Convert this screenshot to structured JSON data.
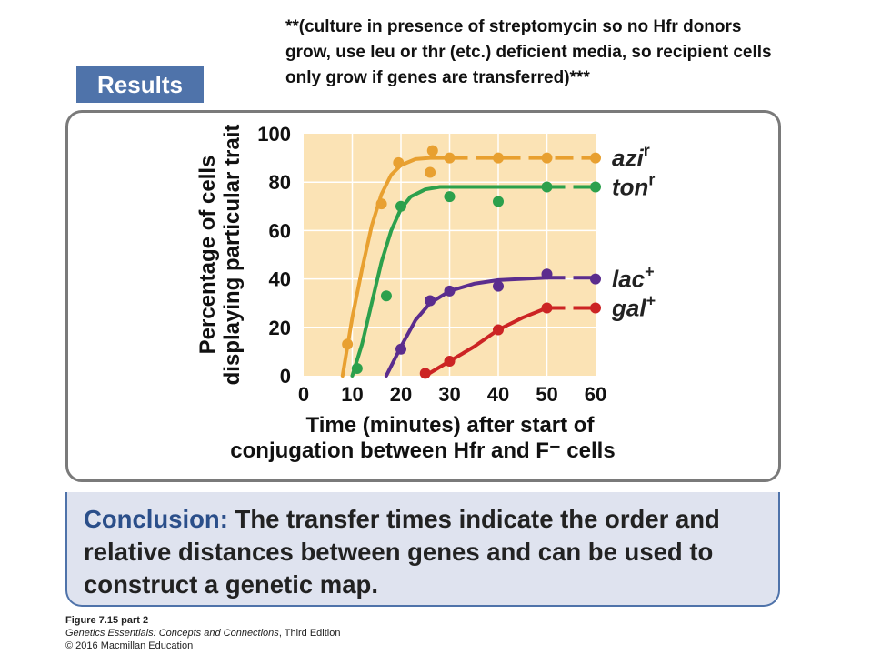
{
  "note": {
    "line1": "**(culture in presence of streptomycin so no Hfr donors",
    "line2": "grow, use leu or thr (etc.) deficient media, so recipient cells",
    "line3": "only grow if genes are transferred)***"
  },
  "results_label": "Results",
  "conclusion": {
    "label": "Conclusion:",
    "line1_rest": " The transfer times indicate the order and",
    "line2": "relative distances between genes and can be used to",
    "line3": "construct a genetic map."
  },
  "caption": {
    "figure": "Figure 7.15 part 2",
    "book_title": "Genetics Essentials: Concepts and Connections",
    "book_edition": ", Third Edition",
    "copyright": "© 2016 Macmillan Education"
  },
  "colors": {
    "plot_bg": "#fbe3b5",
    "grid": "#ffffff",
    "azi": "#e8a030",
    "ton": "#2ca04c",
    "lac": "#5b2d8e",
    "gal": "#cc2424",
    "accent": "#4f73aa"
  },
  "chart_data": {
    "type": "line",
    "xlabel_line1": "Time (minutes) after start of",
    "xlabel_line2": "conjugation between Hfr and F⁻ cells",
    "ylabel_line1": "Percentage of cells",
    "ylabel_line2": "displaying particular trait",
    "xlim": [
      0,
      60
    ],
    "ylim": [
      0,
      100
    ],
    "x_ticks": [
      "0",
      "10",
      "20",
      "30",
      "40",
      "50",
      "60"
    ],
    "y_ticks": [
      "0",
      "20",
      "40",
      "60",
      "80",
      "100"
    ],
    "grid": true,
    "series": [
      {
        "name": "azi",
        "superscript": "r",
        "color": "#e8a030",
        "points": [
          [
            9,
            13
          ],
          [
            16,
            71
          ],
          [
            19.5,
            88
          ],
          [
            26,
            84
          ],
          [
            26.5,
            93
          ],
          [
            30,
            90
          ],
          [
            40,
            90
          ],
          [
            50,
            90
          ],
          [
            60,
            90
          ]
        ],
        "curve": [
          [
            8,
            0
          ],
          [
            10,
            24
          ],
          [
            12,
            44
          ],
          [
            14,
            62
          ],
          [
            16,
            75
          ],
          [
            18,
            83
          ],
          [
            20,
            87
          ],
          [
            23,
            89.5
          ],
          [
            26,
            90
          ],
          [
            60,
            90
          ]
        ],
        "dashed_from": 30
      },
      {
        "name": "ton",
        "superscript": "r",
        "color": "#2ca04c",
        "points": [
          [
            11,
            3
          ],
          [
            17,
            33
          ],
          [
            20,
            70
          ],
          [
            30,
            74
          ],
          [
            40,
            72
          ],
          [
            50,
            78
          ],
          [
            60,
            78
          ]
        ],
        "curve": [
          [
            10,
            0
          ],
          [
            12,
            13
          ],
          [
            14,
            30
          ],
          [
            16,
            47
          ],
          [
            18,
            60
          ],
          [
            20,
            69
          ],
          [
            22,
            74
          ],
          [
            25,
            77
          ],
          [
            28,
            78
          ],
          [
            60,
            78
          ]
        ],
        "dashed_from": 50
      },
      {
        "name": "lac",
        "superscript": "+",
        "color": "#5b2d8e",
        "points": [
          [
            20,
            11
          ],
          [
            26,
            31
          ],
          [
            30,
            35
          ],
          [
            40,
            37
          ],
          [
            50,
            42
          ],
          [
            60,
            40
          ]
        ],
        "curve": [
          [
            17,
            0
          ],
          [
            20,
            12
          ],
          [
            23,
            23
          ],
          [
            26,
            30
          ],
          [
            30,
            35
          ],
          [
            35,
            38
          ],
          [
            40,
            39.5
          ],
          [
            50,
            40.5
          ],
          [
            60,
            40.5
          ]
        ],
        "dashed_from": 50
      },
      {
        "name": "gal",
        "superscript": "+",
        "color": "#cc2424",
        "points": [
          [
            25,
            1
          ],
          [
            30,
            6
          ],
          [
            40,
            19
          ],
          [
            50,
            28
          ],
          [
            60,
            28
          ]
        ],
        "curve": [
          [
            25,
            0
          ],
          [
            30,
            6
          ],
          [
            35,
            12
          ],
          [
            40,
            19
          ],
          [
            45,
            24
          ],
          [
            50,
            28
          ],
          [
            60,
            28
          ]
        ],
        "dashed_from": 50
      }
    ]
  }
}
